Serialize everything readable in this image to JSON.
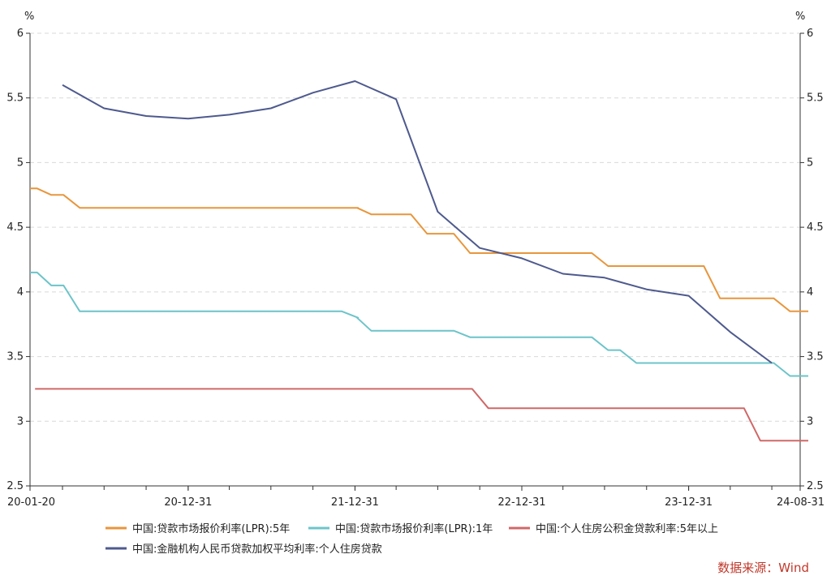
{
  "chart_data": {
    "type": "line",
    "title": "",
    "xlabel": "",
    "ylabel_left": "%",
    "ylabel_right": "%",
    "ylim": [
      2.5,
      6
    ],
    "y_ticks": [
      "2.5",
      "3",
      "3.5",
      "4",
      "4.5",
      "5",
      "5.5",
      "6"
    ],
    "x_range": [
      "2020-01-20",
      "2024-08-31"
    ],
    "x_tick_labels": [
      {
        "date": "2020-01-20",
        "label": "20-01-20"
      },
      {
        "date": "2020-12-31",
        "label": "20-12-31"
      },
      {
        "date": "2021-12-31",
        "label": "21-12-31"
      },
      {
        "date": "2022-12-31",
        "label": "22-12-31"
      },
      {
        "date": "2023-12-31",
        "label": "23-12-31"
      },
      {
        "date": "2024-08-31",
        "label": "24-08-31"
      }
    ],
    "grid": "horizontal-dashed",
    "legend_position": "bottom",
    "series": [
      {
        "name": "中国:贷款市场报价利率(LPR):5年",
        "color": "#E8963C",
        "step": true,
        "points": [
          [
            "2020-01-20",
            4.8
          ],
          [
            "2020-02-20",
            4.75
          ],
          [
            "2020-04-20",
            4.65
          ],
          [
            "2021-12-20",
            4.65
          ],
          [
            "2022-01-20",
            4.6
          ],
          [
            "2022-05-20",
            4.45
          ],
          [
            "2022-08-22",
            4.3
          ],
          [
            "2023-06-20",
            4.2
          ],
          [
            "2024-02-20",
            3.95
          ],
          [
            "2024-07-22",
            3.85
          ],
          [
            "2024-08-31",
            3.85
          ]
        ]
      },
      {
        "name": "中国:贷款市场报价利率(LPR):1年",
        "color": "#6CC4C9",
        "step": true,
        "points": [
          [
            "2020-01-20",
            4.15
          ],
          [
            "2020-02-20",
            4.05
          ],
          [
            "2020-04-20",
            3.85
          ],
          [
            "2021-12-20",
            3.8
          ],
          [
            "2022-01-20",
            3.7
          ],
          [
            "2022-08-22",
            3.65
          ],
          [
            "2023-06-20",
            3.55
          ],
          [
            "2023-08-21",
            3.45
          ],
          [
            "2024-07-22",
            3.35
          ],
          [
            "2024-08-31",
            3.35
          ]
        ]
      },
      {
        "name": "中国:个人住房公积金贷款利率:5年以上",
        "color": "#D06868",
        "step": true,
        "points": [
          [
            "2020-01-31",
            3.25
          ],
          [
            "2022-10-01",
            3.1
          ],
          [
            "2024-05-18",
            2.85
          ],
          [
            "2024-08-31",
            2.85
          ]
        ]
      },
      {
        "name": "中国:金融机构人民币贷款加权平均利率:个人住房贷款",
        "color": "#4E5A8E",
        "step": false,
        "points": [
          [
            "2020-03-31",
            5.6
          ],
          [
            "2020-06-30",
            5.42
          ],
          [
            "2020-09-30",
            5.36
          ],
          [
            "2020-12-31",
            5.34
          ],
          [
            "2021-03-31",
            5.37
          ],
          [
            "2021-06-30",
            5.42
          ],
          [
            "2021-09-30",
            5.54
          ],
          [
            "2021-12-31",
            5.63
          ],
          [
            "2022-03-31",
            5.49
          ],
          [
            "2022-06-30",
            4.62
          ],
          [
            "2022-09-30",
            4.34
          ],
          [
            "2022-12-31",
            4.26
          ],
          [
            "2023-03-31",
            4.14
          ],
          [
            "2023-06-30",
            4.11
          ],
          [
            "2023-09-30",
            4.02
          ],
          [
            "2023-12-31",
            3.97
          ],
          [
            "2024-03-31",
            3.69
          ],
          [
            "2024-06-30",
            3.45
          ]
        ]
      }
    ]
  },
  "source": "数据来源：Wind"
}
